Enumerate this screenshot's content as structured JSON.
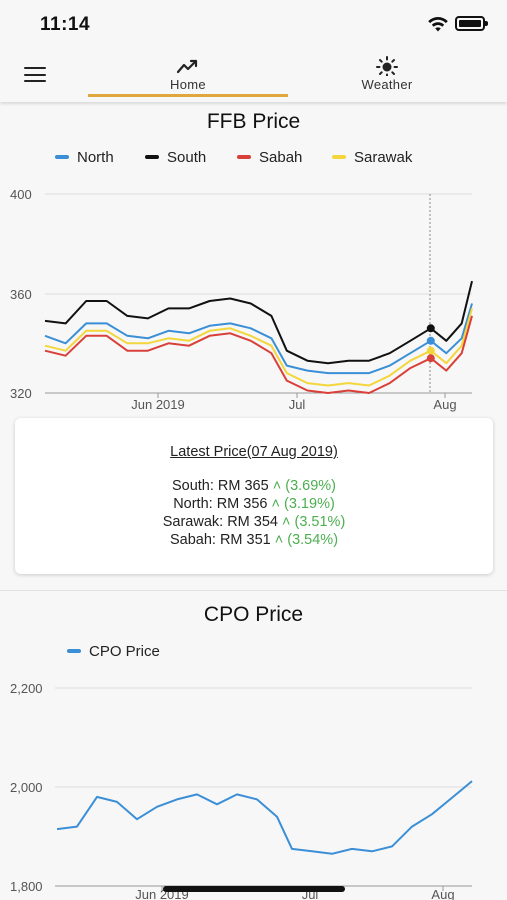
{
  "status": {
    "time": "11:14"
  },
  "nav": {
    "tabs": [
      {
        "label": "Home",
        "icon": "trending-up-icon",
        "active": true
      },
      {
        "label": "Weather",
        "icon": "sun-icon",
        "active": false
      }
    ],
    "indicator_color": "#e0a83c"
  },
  "ffb": {
    "title": "FFB Price",
    "legend": [
      {
        "name": "North",
        "color": "#3b8fd6"
      },
      {
        "name": "South",
        "color": "#111111"
      },
      {
        "name": "Sabah",
        "color": "#d9403a"
      },
      {
        "name": "Sarawak",
        "color": "#f3d63c"
      }
    ],
    "y_ticks": [
      "400",
      "360",
      "320"
    ],
    "x_ticks": [
      "Jun 2019",
      "Jul",
      "Aug"
    ]
  },
  "latest": {
    "heading": "Latest Price(07 Aug 2019)",
    "rows": [
      {
        "label": "South: RM 365",
        "change": "(3.69%)"
      },
      {
        "label": "North: RM 356",
        "change": "(3.19%)"
      },
      {
        "label": "Sarawak: RM 354",
        "change": "(3.51%)"
      },
      {
        "label": "Sabah: RM 351",
        "change": "(3.54%)"
      }
    ]
  },
  "cpo": {
    "title": "CPO Price",
    "legend": [
      {
        "name": "CPO Price",
        "color": "#3b8fd6"
      }
    ],
    "y_ticks": [
      "2,200",
      "2,000",
      "1,800"
    ],
    "x_ticks": [
      "Jun 2019",
      "Jul",
      "Aug"
    ]
  },
  "chart_data": [
    {
      "type": "line",
      "title": "FFB Price",
      "xlabel": "",
      "ylabel": "",
      "ylim": [
        320,
        400
      ],
      "xlim": [
        "2019-05-16",
        "2019-08-07"
      ],
      "x_ticks": [
        "Jun 2019",
        "Jul",
        "Aug"
      ],
      "y_ticks": [
        320,
        360,
        400
      ],
      "legend_position": "top",
      "grid": "horizontal",
      "x": [
        "2019-05-16",
        "2019-05-20",
        "2019-05-24",
        "2019-05-28",
        "2019-06-01",
        "2019-06-05",
        "2019-06-09",
        "2019-06-13",
        "2019-06-17",
        "2019-06-21",
        "2019-06-25",
        "2019-06-29",
        "2019-07-02",
        "2019-07-06",
        "2019-07-10",
        "2019-07-14",
        "2019-07-18",
        "2019-07-22",
        "2019-07-26",
        "2019-07-30",
        "2019-08-02",
        "2019-08-05",
        "2019-08-07"
      ],
      "series": [
        {
          "name": "South",
          "color": "#111111",
          "values": [
            349,
            348,
            357,
            357,
            351,
            350,
            354,
            354,
            357,
            358,
            356,
            351,
            337,
            333,
            332,
            333,
            333,
            336,
            341,
            346,
            341,
            348,
            365
          ]
        },
        {
          "name": "North",
          "color": "#3b8fd6",
          "values": [
            343,
            340,
            348,
            348,
            343,
            342,
            345,
            344,
            347,
            348,
            346,
            342,
            331,
            329,
            328,
            328,
            328,
            331,
            336,
            341,
            336,
            342,
            356
          ]
        },
        {
          "name": "Sarawak",
          "color": "#f3d63c",
          "values": [
            339,
            337,
            345,
            345,
            340,
            340,
            342,
            341,
            345,
            346,
            343,
            339,
            328,
            324,
            323,
            324,
            323,
            327,
            333,
            337,
            332,
            339,
            354
          ]
        },
        {
          "name": "Sabah",
          "color": "#d9403a",
          "values": [
            337,
            335,
            343,
            343,
            337,
            337,
            340,
            339,
            343,
            344,
            341,
            336,
            325,
            321,
            320,
            321,
            320,
            324,
            330,
            334,
            329,
            336,
            351
          ]
        }
      ]
    },
    {
      "type": "line",
      "title": "CPO Price",
      "xlabel": "",
      "ylabel": "",
      "ylim": [
        1800,
        2200
      ],
      "xlim": [
        "2019-05-16",
        "2019-08-07"
      ],
      "x_ticks": [
        "Jun 2019",
        "Jul",
        "Aug"
      ],
      "y_ticks": [
        1800,
        2000,
        2200
      ],
      "legend_position": "top",
      "grid": "horizontal",
      "x": [
        "2019-05-16",
        "2019-05-20",
        "2019-05-24",
        "2019-05-28",
        "2019-06-01",
        "2019-06-05",
        "2019-06-09",
        "2019-06-13",
        "2019-06-17",
        "2019-06-21",
        "2019-06-25",
        "2019-06-29",
        "2019-07-02",
        "2019-07-06",
        "2019-07-10",
        "2019-07-14",
        "2019-07-18",
        "2019-07-22",
        "2019-07-26",
        "2019-07-30",
        "2019-08-02",
        "2019-08-05",
        "2019-08-07"
      ],
      "series": [
        {
          "name": "CPO Price",
          "color": "#3b8fd6",
          "values": [
            1915,
            1920,
            1980,
            1970,
            1935,
            1960,
            1975,
            1985,
            1965,
            1985,
            1975,
            1940,
            1875,
            1870,
            1865,
            1875,
            1870,
            1880,
            1920,
            1945,
            1970,
            1995,
            2012
          ]
        }
      ]
    }
  ]
}
